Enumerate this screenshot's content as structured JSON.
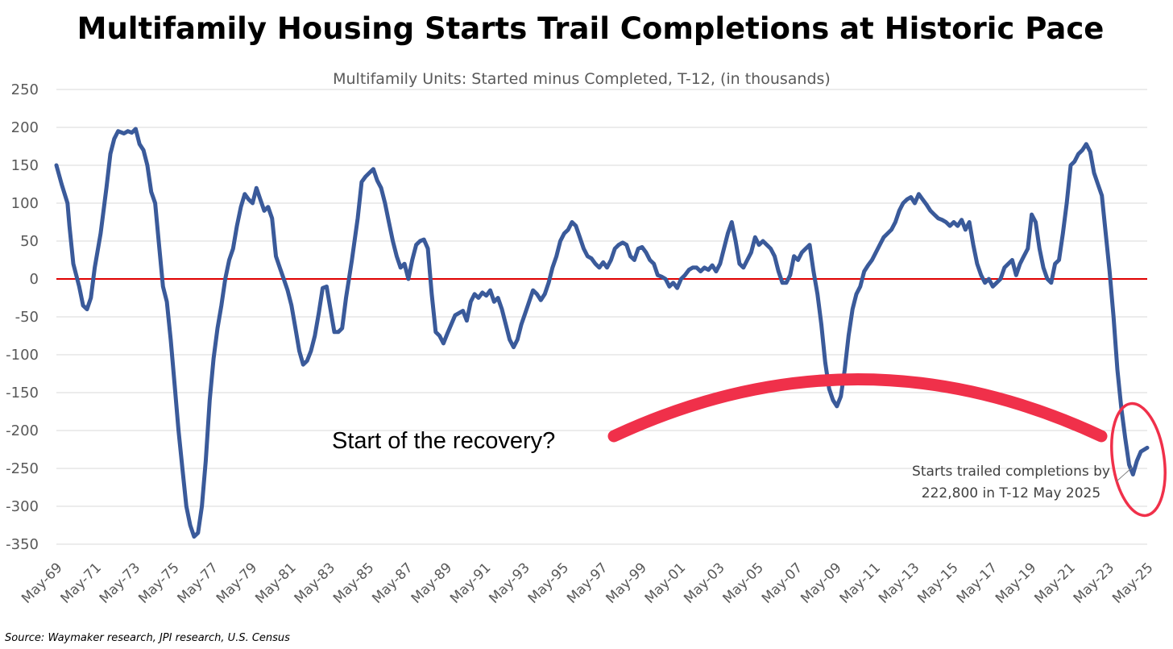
{
  "chart_data": {
    "type": "line",
    "title": "Multifamily Housing Starts Trail Completions at Historic Pace",
    "subtitle": "Multifamily Units: Started minus Completed, T-12, (in thousands)",
    "ylim": [
      -350,
      250
    ],
    "yticks": [
      250,
      200,
      150,
      100,
      50,
      0,
      -50,
      -100,
      -150,
      -200,
      -250,
      -300,
      -350
    ],
    "xlim": [
      1969.33,
      2025.33
    ],
    "xticks": [
      {
        "label": "May-69",
        "x": 1969.33
      },
      {
        "label": "May-71",
        "x": 1971.33
      },
      {
        "label": "May-73",
        "x": 1973.33
      },
      {
        "label": "May-75",
        "x": 1975.33
      },
      {
        "label": "May-77",
        "x": 1977.33
      },
      {
        "label": "May-79",
        "x": 1979.33
      },
      {
        "label": "May-81",
        "x": 1981.33
      },
      {
        "label": "May-83",
        "x": 1983.33
      },
      {
        "label": "May-85",
        "x": 1985.33
      },
      {
        "label": "May-87",
        "x": 1987.33
      },
      {
        "label": "May-89",
        "x": 1989.33
      },
      {
        "label": "May-91",
        "x": 1991.33
      },
      {
        "label": "May-93",
        "x": 1993.33
      },
      {
        "label": "May-95",
        "x": 1995.33
      },
      {
        "label": "May-97",
        "x": 1997.33
      },
      {
        "label": "May-99",
        "x": 1999.33
      },
      {
        "label": "May-01",
        "x": 2001.33
      },
      {
        "label": "May-03",
        "x": 2003.33
      },
      {
        "label": "May-05",
        "x": 2005.33
      },
      {
        "label": "May-07",
        "x": 2007.33
      },
      {
        "label": "May-09",
        "x": 2009.33
      },
      {
        "label": "May-11",
        "x": 2011.33
      },
      {
        "label": "May-13",
        "x": 2013.33
      },
      {
        "label": "May-15",
        "x": 2015.33
      },
      {
        "label": "May-17",
        "x": 2017.33
      },
      {
        "label": "May-19",
        "x": 2019.33
      },
      {
        "label": "May-21",
        "x": 2021.33
      },
      {
        "label": "May-23",
        "x": 2023.33
      },
      {
        "label": "May-25",
        "x": 2025.33
      }
    ],
    "grid": true,
    "reference_line": {
      "y": 0,
      "color": "#e00000"
    },
    "series": [
      {
        "color": "#3a5a9a",
        "points": [
          [
            1969.33,
            150
          ],
          [
            1969.6,
            125
          ],
          [
            1969.9,
            100
          ],
          [
            1970.0,
            70
          ],
          [
            1970.2,
            20
          ],
          [
            1970.5,
            -10
          ],
          [
            1970.7,
            -35
          ],
          [
            1970.9,
            -40
          ],
          [
            1971.1,
            -25
          ],
          [
            1971.3,
            15
          ],
          [
            1971.6,
            60
          ],
          [
            1971.9,
            120
          ],
          [
            1972.1,
            165
          ],
          [
            1972.3,
            185
          ],
          [
            1972.5,
            195
          ],
          [
            1972.8,
            192
          ],
          [
            1973.0,
            195
          ],
          [
            1973.2,
            193
          ],
          [
            1973.4,
            198
          ],
          [
            1973.6,
            178
          ],
          [
            1973.8,
            170
          ],
          [
            1974.0,
            150
          ],
          [
            1974.2,
            115
          ],
          [
            1974.4,
            100
          ],
          [
            1974.6,
            45
          ],
          [
            1974.8,
            -10
          ],
          [
            1975.0,
            -30
          ],
          [
            1975.2,
            -80
          ],
          [
            1975.4,
            -140
          ],
          [
            1975.6,
            -200
          ],
          [
            1975.8,
            -250
          ],
          [
            1976.0,
            -300
          ],
          [
            1976.2,
            -325
          ],
          [
            1976.4,
            -340
          ],
          [
            1976.6,
            -335
          ],
          [
            1976.8,
            -300
          ],
          [
            1977.0,
            -240
          ],
          [
            1977.2,
            -160
          ],
          [
            1977.4,
            -105
          ],
          [
            1977.6,
            -65
          ],
          [
            1977.8,
            -35
          ],
          [
            1978.0,
            0
          ],
          [
            1978.2,
            25
          ],
          [
            1978.4,
            40
          ],
          [
            1978.6,
            70
          ],
          [
            1978.8,
            95
          ],
          [
            1979.0,
            112
          ],
          [
            1979.2,
            105
          ],
          [
            1979.4,
            100
          ],
          [
            1979.6,
            120
          ],
          [
            1979.8,
            105
          ],
          [
            1980.0,
            90
          ],
          [
            1980.2,
            95
          ],
          [
            1980.4,
            80
          ],
          [
            1980.6,
            30
          ],
          [
            1980.8,
            15
          ],
          [
            1981.0,
            0
          ],
          [
            1981.2,
            -15
          ],
          [
            1981.4,
            -35
          ],
          [
            1981.6,
            -65
          ],
          [
            1981.8,
            -95
          ],
          [
            1982.0,
            -113
          ],
          [
            1982.2,
            -108
          ],
          [
            1982.4,
            -95
          ],
          [
            1982.6,
            -75
          ],
          [
            1982.8,
            -45
          ],
          [
            1983.0,
            -12
          ],
          [
            1983.2,
            -10
          ],
          [
            1983.4,
            -40
          ],
          [
            1983.6,
            -70
          ],
          [
            1983.8,
            -70
          ],
          [
            1984.0,
            -65
          ],
          [
            1984.2,
            -25
          ],
          [
            1984.5,
            25
          ],
          [
            1984.8,
            80
          ],
          [
            1985.0,
            128
          ],
          [
            1985.2,
            135
          ],
          [
            1985.4,
            140
          ],
          [
            1985.6,
            145
          ],
          [
            1985.8,
            130
          ],
          [
            1986.0,
            120
          ],
          [
            1986.2,
            100
          ],
          [
            1986.4,
            75
          ],
          [
            1986.6,
            50
          ],
          [
            1986.8,
            30
          ],
          [
            1987.0,
            15
          ],
          [
            1987.2,
            20
          ],
          [
            1987.4,
            0
          ],
          [
            1987.6,
            25
          ],
          [
            1987.8,
            45
          ],
          [
            1988.0,
            50
          ],
          [
            1988.2,
            52
          ],
          [
            1988.4,
            40
          ],
          [
            1988.6,
            -20
          ],
          [
            1988.8,
            -70
          ],
          [
            1989.0,
            -75
          ],
          [
            1989.2,
            -85
          ],
          [
            1989.4,
            -72
          ],
          [
            1989.6,
            -60
          ],
          [
            1989.8,
            -48
          ],
          [
            1990.0,
            -45
          ],
          [
            1990.2,
            -42
          ],
          [
            1990.4,
            -55
          ],
          [
            1990.6,
            -30
          ],
          [
            1990.8,
            -20
          ],
          [
            1991.0,
            -25
          ],
          [
            1991.2,
            -18
          ],
          [
            1991.4,
            -22
          ],
          [
            1991.6,
            -15
          ],
          [
            1991.8,
            -30
          ],
          [
            1992.0,
            -25
          ],
          [
            1992.2,
            -40
          ],
          [
            1992.4,
            -60
          ],
          [
            1992.6,
            -80
          ],
          [
            1992.8,
            -90
          ],
          [
            1993.0,
            -80
          ],
          [
            1993.2,
            -60
          ],
          [
            1993.4,
            -45
          ],
          [
            1993.6,
            -30
          ],
          [
            1993.8,
            -15
          ],
          [
            1994.0,
            -20
          ],
          [
            1994.2,
            -28
          ],
          [
            1994.4,
            -20
          ],
          [
            1994.6,
            -5
          ],
          [
            1994.8,
            15
          ],
          [
            1995.0,
            30
          ],
          [
            1995.2,
            50
          ],
          [
            1995.4,
            60
          ],
          [
            1995.6,
            65
          ],
          [
            1995.8,
            75
          ],
          [
            1996.0,
            70
          ],
          [
            1996.2,
            55
          ],
          [
            1996.4,
            40
          ],
          [
            1996.6,
            30
          ],
          [
            1996.8,
            27
          ],
          [
            1997.0,
            20
          ],
          [
            1997.2,
            15
          ],
          [
            1997.4,
            22
          ],
          [
            1997.6,
            15
          ],
          [
            1997.8,
            25
          ],
          [
            1998.0,
            40
          ],
          [
            1998.2,
            45
          ],
          [
            1998.4,
            48
          ],
          [
            1998.6,
            45
          ],
          [
            1998.8,
            30
          ],
          [
            1999.0,
            25
          ],
          [
            1999.2,
            40
          ],
          [
            1999.4,
            42
          ],
          [
            1999.6,
            35
          ],
          [
            1999.8,
            25
          ],
          [
            2000.0,
            20
          ],
          [
            2000.2,
            5
          ],
          [
            2000.4,
            3
          ],
          [
            2000.6,
            0
          ],
          [
            2000.8,
            -10
          ],
          [
            2001.0,
            -5
          ],
          [
            2001.2,
            -12
          ],
          [
            2001.4,
            0
          ],
          [
            2001.6,
            5
          ],
          [
            2001.8,
            12
          ],
          [
            2002.0,
            15
          ],
          [
            2002.2,
            15
          ],
          [
            2002.4,
            10
          ],
          [
            2002.6,
            15
          ],
          [
            2002.8,
            12
          ],
          [
            2003.0,
            18
          ],
          [
            2003.2,
            10
          ],
          [
            2003.4,
            20
          ],
          [
            2003.6,
            40
          ],
          [
            2003.8,
            60
          ],
          [
            2004.0,
            75
          ],
          [
            2004.2,
            50
          ],
          [
            2004.4,
            20
          ],
          [
            2004.6,
            15
          ],
          [
            2004.8,
            25
          ],
          [
            2005.0,
            35
          ],
          [
            2005.2,
            55
          ],
          [
            2005.4,
            45
          ],
          [
            2005.6,
            50
          ],
          [
            2005.8,
            45
          ],
          [
            2006.0,
            40
          ],
          [
            2006.2,
            30
          ],
          [
            2006.4,
            10
          ],
          [
            2006.6,
            -5
          ],
          [
            2006.8,
            -5
          ],
          [
            2007.0,
            5
          ],
          [
            2007.2,
            30
          ],
          [
            2007.4,
            25
          ],
          [
            2007.6,
            35
          ],
          [
            2007.8,
            40
          ],
          [
            2008.0,
            45
          ],
          [
            2008.2,
            10
          ],
          [
            2008.4,
            -20
          ],
          [
            2008.6,
            -60
          ],
          [
            2008.8,
            -110
          ],
          [
            2009.0,
            -145
          ],
          [
            2009.2,
            -160
          ],
          [
            2009.4,
            -168
          ],
          [
            2009.6,
            -155
          ],
          [
            2009.8,
            -120
          ],
          [
            2010.0,
            -75
          ],
          [
            2010.2,
            -40
          ],
          [
            2010.4,
            -20
          ],
          [
            2010.6,
            -10
          ],
          [
            2010.8,
            10
          ],
          [
            2011.0,
            18
          ],
          [
            2011.2,
            25
          ],
          [
            2011.4,
            35
          ],
          [
            2011.6,
            45
          ],
          [
            2011.8,
            55
          ],
          [
            2012.0,
            60
          ],
          [
            2012.2,
            65
          ],
          [
            2012.4,
            75
          ],
          [
            2012.6,
            90
          ],
          [
            2012.8,
            100
          ],
          [
            2013.0,
            105
          ],
          [
            2013.2,
            108
          ],
          [
            2013.4,
            100
          ],
          [
            2013.6,
            112
          ],
          [
            2013.8,
            105
          ],
          [
            2014.0,
            98
          ],
          [
            2014.2,
            90
          ],
          [
            2014.4,
            85
          ],
          [
            2014.6,
            80
          ],
          [
            2014.8,
            78
          ],
          [
            2015.0,
            75
          ],
          [
            2015.2,
            70
          ],
          [
            2015.4,
            75
          ],
          [
            2015.6,
            70
          ],
          [
            2015.8,
            78
          ],
          [
            2016.0,
            65
          ],
          [
            2016.2,
            75
          ],
          [
            2016.4,
            45
          ],
          [
            2016.6,
            20
          ],
          [
            2016.8,
            5
          ],
          [
            2017.0,
            -5
          ],
          [
            2017.2,
            0
          ],
          [
            2017.4,
            -10
          ],
          [
            2017.6,
            -5
          ],
          [
            2017.8,
            0
          ],
          [
            2018.0,
            15
          ],
          [
            2018.2,
            20
          ],
          [
            2018.4,
            25
          ],
          [
            2018.6,
            5
          ],
          [
            2018.8,
            20
          ],
          [
            2019.0,
            30
          ],
          [
            2019.2,
            40
          ],
          [
            2019.4,
            85
          ],
          [
            2019.6,
            75
          ],
          [
            2019.8,
            40
          ],
          [
            2020.0,
            15
          ],
          [
            2020.2,
            0
          ],
          [
            2020.4,
            -5
          ],
          [
            2020.6,
            20
          ],
          [
            2020.8,
            25
          ],
          [
            2021.0,
            60
          ],
          [
            2021.2,
            100
          ],
          [
            2021.4,
            150
          ],
          [
            2021.6,
            155
          ],
          [
            2021.8,
            165
          ],
          [
            2022.0,
            170
          ],
          [
            2022.2,
            178
          ],
          [
            2022.4,
            168
          ],
          [
            2022.6,
            140
          ],
          [
            2022.8,
            125
          ],
          [
            2023.0,
            110
          ],
          [
            2023.2,
            60
          ],
          [
            2023.4,
            10
          ],
          [
            2023.6,
            -50
          ],
          [
            2023.8,
            -120
          ],
          [
            2024.0,
            -170
          ],
          [
            2024.2,
            -210
          ],
          [
            2024.4,
            -245
          ],
          [
            2024.6,
            -258
          ],
          [
            2024.8,
            -240
          ],
          [
            2025.0,
            -228
          ],
          [
            2025.33,
            -222.8
          ]
        ]
      }
    ],
    "annotations": {
      "recovery": "Start of the recovery?",
      "callout_line1": "Starts trailed completions by",
      "callout_line2": "222,800 in T-12 May 2025"
    },
    "source": "Source: Waymaker research, JPI research, U.S. Census"
  }
}
